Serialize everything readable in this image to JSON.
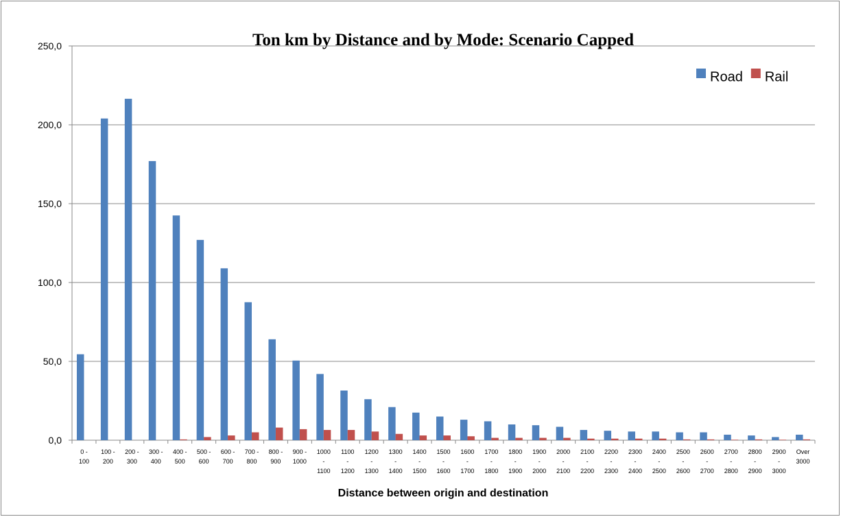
{
  "chart_data": {
    "type": "bar",
    "title": "Ton km by Distance and by Mode: Scenario Capped",
    "x_label": "Distance between origin and destination",
    "categories": [
      "0 - 100",
      "100 - 200",
      "200 - 300",
      "300 - 400",
      "400 - 500",
      "500 - 600",
      "600 - 700",
      "700 - 800",
      "800 - 900",
      "900 - 1000",
      "1000 - 1100",
      "1100 - 1200",
      "1200 - 1300",
      "1300 - 1400",
      "1400 - 1500",
      "1500 - 1600",
      "1600 - 1700",
      "1700 - 1800",
      "1800 - 1900",
      "1900 - 2000",
      "2000 - 2100",
      "2100 - 2200",
      "2200 - 2300",
      "2300 - 2400",
      "2400 - 2500",
      "2500 - 2600",
      "2600 - 2700",
      "2700 - 2800",
      "2800 - 2900",
      "2900 - 3000",
      "Over 3000"
    ],
    "series": [
      {
        "name": "Road",
        "color": "#4f81bd",
        "values": [
          54.5,
          204,
          216.5,
          177,
          142.5,
          127,
          109,
          87.5,
          64,
          50.5,
          42,
          31.5,
          26,
          21,
          17.5,
          15,
          13,
          12,
          10,
          9.5,
          8.5,
          6.5,
          6,
          5.5,
          5.5,
          5,
          5,
          3.5,
          3,
          2,
          3.5
        ]
      },
      {
        "name": "Rail",
        "color": "#c0504d",
        "values": [
          0,
          0,
          0,
          0,
          0.5,
          2,
          3,
          5,
          8,
          7,
          6.5,
          6.5,
          5.5,
          4,
          3,
          3,
          2.5,
          1.5,
          1.5,
          1.5,
          1.5,
          1,
          1,
          1,
          1,
          0.5,
          0.5,
          0.3,
          0.5,
          0.3,
          0.5
        ]
      }
    ],
    "ylim": [
      0,
      250
    ],
    "yticks": [
      {
        "value": 0,
        "label": "0,0"
      },
      {
        "value": 50,
        "label": "50,0"
      },
      {
        "value": 100,
        "label": "100,0"
      },
      {
        "value": 150,
        "label": "150,0"
      },
      {
        "value": 200,
        "label": "200,0"
      },
      {
        "value": 250,
        "label": "250,0"
      }
    ],
    "grid": true,
    "legend": "top-right"
  }
}
